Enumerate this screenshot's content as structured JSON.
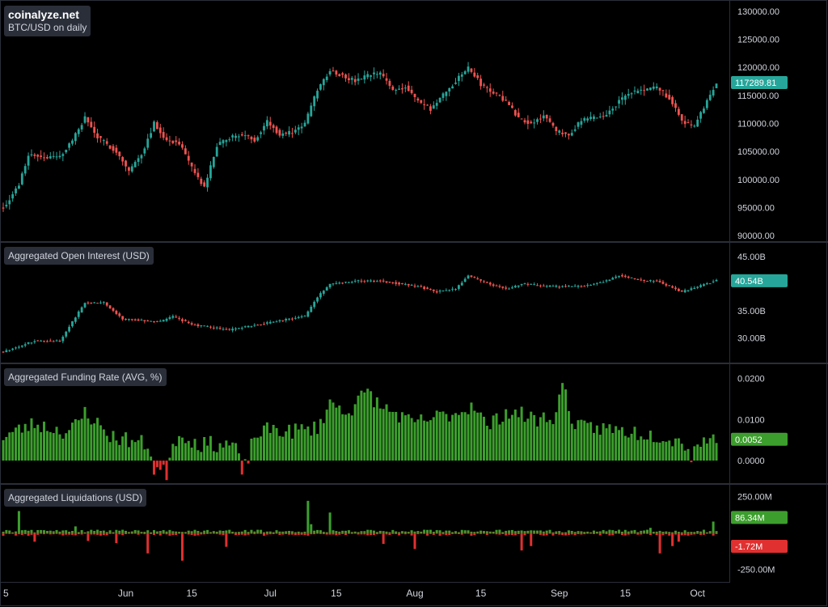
{
  "brand": {
    "site": "coinalyze.net",
    "subtitle": "BTC/USD on daily"
  },
  "colors": {
    "up": "#26a69a",
    "down": "#ef5350",
    "funding_up": "#3c9f2d",
    "liq_long": "#e03030"
  },
  "chart_data": [
    {
      "type": "candlestick",
      "title": "BTC/USD on daily",
      "ylim": [
        89000,
        132000
      ],
      "y_ticks": [
        "130000.00",
        "125000.00",
        "120000.00",
        "115000.00",
        "110000.00",
        "105000.00",
        "100000.00",
        "95000.00",
        "90000.00"
      ],
      "y_tick_values": [
        130000,
        125000,
        120000,
        115000,
        110000,
        105000,
        100000,
        95000,
        90000
      ],
      "last_value": "117289.81",
      "last_number": 117290,
      "waypoints": [
        [
          0,
          95000
        ],
        [
          5,
          99000
        ],
        [
          8,
          104500
        ],
        [
          13,
          104000
        ],
        [
          18,
          104000
        ],
        [
          22,
          107000
        ],
        [
          26,
          111000
        ],
        [
          30,
          107500
        ],
        [
          36,
          105000
        ],
        [
          40,
          101500
        ],
        [
          44,
          104500
        ],
        [
          48,
          110000
        ],
        [
          52,
          107000
        ],
        [
          56,
          106500
        ],
        [
          60,
          102000
        ],
        [
          64,
          98500
        ],
        [
          68,
          106000
        ],
        [
          72,
          107500
        ],
        [
          76,
          108000
        ],
        [
          80,
          107000
        ],
        [
          84,
          110500
        ],
        [
          88,
          108000
        ],
        [
          92,
          108500
        ],
        [
          96,
          110000
        ],
        [
          100,
          116000
        ],
        [
          104,
          119500
        ],
        [
          108,
          118500
        ],
        [
          112,
          117500
        ],
        [
          116,
          118500
        ],
        [
          120,
          119000
        ],
        [
          124,
          116000
        ],
        [
          128,
          116500
        ],
        [
          132,
          114000
        ],
        [
          136,
          112500
        ],
        [
          140,
          115000
        ],
        [
          144,
          117500
        ],
        [
          148,
          120000
        ],
        [
          152,
          117000
        ],
        [
          156,
          115500
        ],
        [
          160,
          114000
        ],
        [
          164,
          111000
        ],
        [
          168,
          110000
        ],
        [
          172,
          111500
        ],
        [
          176,
          108500
        ],
        [
          180,
          108000
        ],
        [
          184,
          110500
        ],
        [
          188,
          111000
        ],
        [
          192,
          111500
        ],
        [
          196,
          114000
        ],
        [
          200,
          115500
        ],
        [
          204,
          116000
        ],
        [
          208,
          116500
        ],
        [
          212,
          114500
        ],
        [
          216,
          110500
        ],
        [
          220,
          109500
        ],
        [
          224,
          114000
        ],
        [
          227,
          117300
        ]
      ]
    },
    {
      "type": "candlestick",
      "title": "Aggregated Open Interest (USD)",
      "ylim": [
        25500,
        47500
      ],
      "unit": "B",
      "y_ticks": [
        "45.00B",
        "35.00B",
        "30.00B"
      ],
      "y_tick_values": [
        45000,
        35000,
        30000
      ],
      "last_value": "40.54B",
      "last_number": 40540,
      "waypoints": [
        [
          0,
          27500
        ],
        [
          10,
          29500
        ],
        [
          18,
          29500
        ],
        [
          26,
          36500
        ],
        [
          32,
          36500
        ],
        [
          38,
          33500
        ],
        [
          50,
          33000
        ],
        [
          54,
          34000
        ],
        [
          60,
          32500
        ],
        [
          72,
          31500
        ],
        [
          86,
          33000
        ],
        [
          96,
          34000
        ],
        [
          100,
          37500
        ],
        [
          104,
          40000
        ],
        [
          112,
          40500
        ],
        [
          120,
          40500
        ],
        [
          126,
          40000
        ],
        [
          132,
          39500
        ],
        [
          138,
          38500
        ],
        [
          144,
          39000
        ],
        [
          148,
          41500
        ],
        [
          152,
          40500
        ],
        [
          160,
          39000
        ],
        [
          166,
          40000
        ],
        [
          172,
          39500
        ],
        [
          184,
          39500
        ],
        [
          192,
          40500
        ],
        [
          196,
          41500
        ],
        [
          204,
          40500
        ],
        [
          208,
          40500
        ],
        [
          212,
          39500
        ],
        [
          216,
          38500
        ],
        [
          224,
          40000
        ],
        [
          227,
          40540
        ]
      ]
    },
    {
      "type": "bar",
      "title": "Aggregated Funding Rate (AVG, %)",
      "ylim": [
        -0.0055,
        0.0235
      ],
      "y_ticks": [
        "0.0200",
        "0.0100",
        "0.0000"
      ],
      "y_tick_values": [
        0.02,
        0.01,
        0
      ],
      "last_value": "0.0052",
      "last_number": 0.0052,
      "waypoints": [
        [
          0,
          0.006
        ],
        [
          10,
          0.009
        ],
        [
          20,
          0.007
        ],
        [
          24,
          0.009
        ],
        [
          26,
          0.012
        ],
        [
          30,
          0.009
        ],
        [
          34,
          0.006
        ],
        [
          40,
          0.005
        ],
        [
          46,
          0.004
        ],
        [
          48,
          -0.002
        ],
        [
          52,
          -0.003
        ],
        [
          54,
          0.005
        ],
        [
          58,
          0.006
        ],
        [
          62,
          0.004
        ],
        [
          70,
          0.004
        ],
        [
          74,
          0.004
        ],
        [
          76,
          -0.004
        ],
        [
          80,
          0.006
        ],
        [
          86,
          0.008
        ],
        [
          90,
          0.007
        ],
        [
          100,
          0.008
        ],
        [
          104,
          0.014
        ],
        [
          110,
          0.012
        ],
        [
          116,
          0.017
        ],
        [
          120,
          0.013
        ],
        [
          124,
          0.012
        ],
        [
          130,
          0.009
        ],
        [
          140,
          0.011
        ],
        [
          146,
          0.012
        ],
        [
          150,
          0.014
        ],
        [
          154,
          0.008
        ],
        [
          160,
          0.012
        ],
        [
          166,
          0.011
        ],
        [
          170,
          0.01
        ],
        [
          176,
          0.011
        ],
        [
          178,
          0.019
        ],
        [
          182,
          0.008
        ],
        [
          190,
          0.008
        ],
        [
          200,
          0.007
        ],
        [
          210,
          0.006
        ],
        [
          218,
          0.004
        ],
        [
          224,
          0.005
        ],
        [
          227,
          0.0052
        ]
      ]
    },
    {
      "type": "bar",
      "title": "Aggregated Liquidations (USD)",
      "ylim": [
        -330,
        330
      ],
      "unit": "M",
      "y_ticks": [
        "250.00M",
        "-250.00M"
      ],
      "y_tick_values": [
        250,
        -250
      ],
      "last_long": "86.34M",
      "last_long_number": 86.34,
      "last_short": "-1.72M",
      "last_short_number": -1.72
    }
  ],
  "x_axis": {
    "labels": [
      "5",
      "Jun",
      "15",
      "Jul",
      "15",
      "Aug",
      "15",
      "Sep",
      "15",
      "Oct"
    ],
    "positions": [
      0,
      39,
      60,
      85,
      106,
      131,
      152,
      177,
      198,
      221
    ]
  },
  "liquidation_spikes_long": [
    [
      5,
      150
    ],
    [
      23,
      45
    ],
    [
      97,
      220
    ],
    [
      98,
      60
    ],
    [
      104,
      140
    ],
    [
      206,
      35
    ],
    [
      226,
      78
    ]
  ],
  "liquidation_spikes_short": [
    [
      10,
      -60
    ],
    [
      27,
      -55
    ],
    [
      36,
      -70
    ],
    [
      46,
      -140
    ],
    [
      57,
      -190
    ],
    [
      71,
      -95
    ],
    [
      121,
      -75
    ],
    [
      131,
      -110
    ],
    [
      165,
      -120
    ],
    [
      168,
      -90
    ],
    [
      209,
      -140
    ],
    [
      213,
      -90
    ],
    [
      215,
      -60
    ]
  ]
}
